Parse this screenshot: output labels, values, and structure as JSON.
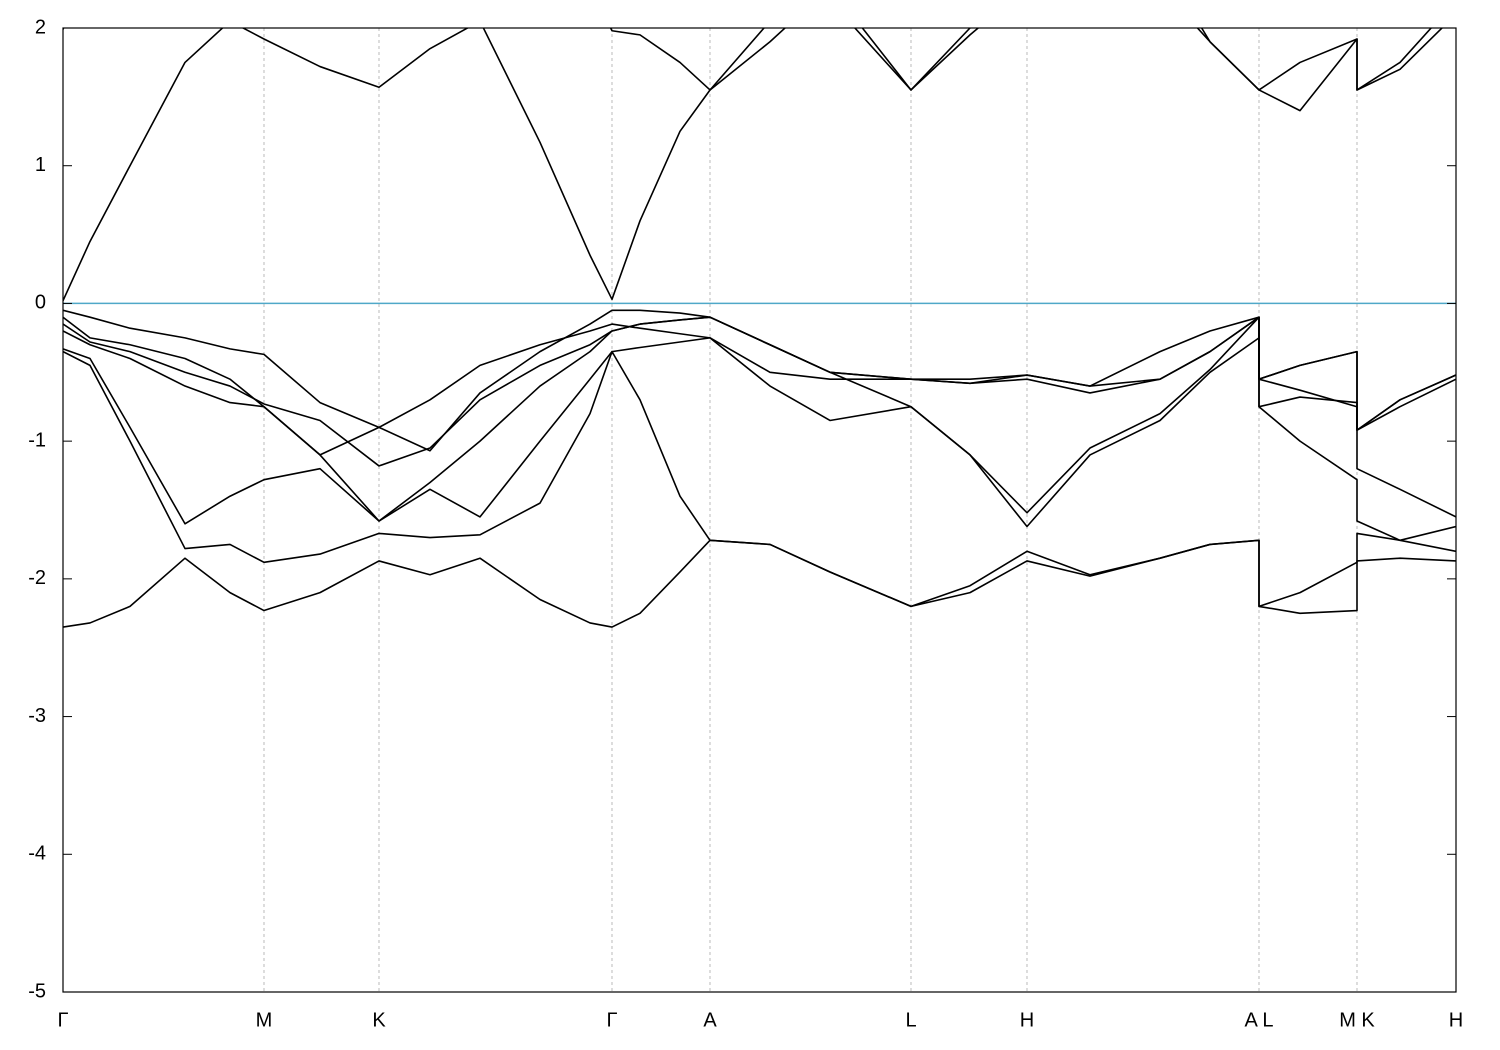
{
  "chart_data": {
    "type": "line",
    "x": [
      0,
      27,
      67,
      122,
      167,
      201,
      257,
      316,
      367,
      417,
      477,
      527,
      549,
      577,
      617,
      647,
      707,
      767,
      848,
      907,
      964,
      1027,
      1097,
      1147,
      1196,
      1196,
      1237,
      1294,
      1294,
      1337,
      1393
    ],
    "xlim": [
      0,
      1393
    ],
    "xticks": [
      {
        "value": 0,
        "label": "Γ"
      },
      {
        "value": 201,
        "label": "M"
      },
      {
        "value": 316,
        "label": "K"
      },
      {
        "value": 549,
        "label": "Γ"
      },
      {
        "value": 647,
        "label": "A"
      },
      {
        "value": 848,
        "label": "L"
      },
      {
        "value": 964,
        "label": "H"
      },
      {
        "value": 1196,
        "label": "A L"
      },
      {
        "value": 1294,
        "label": "M K"
      },
      {
        "value": 1393,
        "label": "H"
      }
    ],
    "ylim": [
      -5,
      2
    ],
    "yticks": [
      -5,
      -4,
      -3,
      -2,
      -1,
      0,
      1,
      2
    ],
    "xgrid": true,
    "reference_line": 0,
    "reference_color": "#4fa8c8",
    "series": [
      {
        "color": "#000000",
        "values": [
          -2.35,
          -2.32,
          -2.2,
          -1.85,
          -2.1,
          -2.23,
          -2.1,
          -1.87,
          -1.97,
          -1.85,
          -2.15,
          -2.32,
          -2.35,
          -2.25,
          -1.95,
          -1.72,
          -1.75,
          -1.95,
          -2.2,
          -2.1,
          -1.87,
          -1.98,
          -1.85,
          -1.75,
          -1.72,
          -2.2,
          -2.25,
          -2.23,
          -1.87,
          -1.85,
          -1.87
        ]
      },
      {
        "color": "#000000",
        "values": [
          -0.35,
          -0.45,
          -1.0,
          -1.78,
          -1.75,
          -1.88,
          -1.82,
          -1.67,
          -1.7,
          -1.68,
          -1.45,
          -0.8,
          -0.35,
          -0.7,
          -1.4,
          -1.72,
          -1.75,
          -1.95,
          -2.2,
          -2.05,
          -1.8,
          -1.97,
          -1.85,
          -1.75,
          -1.72,
          -2.2,
          -2.1,
          -1.88,
          -1.67,
          -1.72,
          -1.8
        ]
      },
      {
        "color": "#000000",
        "values": [
          -0.33,
          -0.4,
          -0.9,
          -1.6,
          -1.4,
          -1.28,
          -1.2,
          -1.58,
          -1.35,
          -1.55,
          -1.0,
          -0.55,
          -0.35,
          -0.32,
          -0.28,
          -0.25,
          -0.6,
          -0.85,
          -0.75,
          -1.1,
          -1.62,
          -1.1,
          -0.85,
          -0.5,
          -0.25,
          -0.75,
          -1.0,
          -1.28,
          -1.58,
          -1.72,
          -1.62
        ]
      },
      {
        "color": "#000000",
        "values": [
          -0.2,
          -0.3,
          -0.4,
          -0.6,
          -0.72,
          -0.75,
          -1.1,
          -1.58,
          -1.3,
          -1.0,
          -0.6,
          -0.35,
          -0.2,
          -0.15,
          -0.12,
          -0.1,
          -0.3,
          -0.5,
          -0.75,
          -1.1,
          -1.52,
          -1.05,
          -0.8,
          -0.48,
          -0.1,
          -0.75,
          -0.68,
          -0.72,
          -1.2,
          -1.35,
          -1.55
        ]
      },
      {
        "color": "#000000",
        "values": [
          -0.15,
          -0.28,
          -0.35,
          -0.5,
          -0.6,
          -0.73,
          -0.85,
          -1.18,
          -1.05,
          -0.7,
          -0.45,
          -0.3,
          -0.2,
          -0.15,
          -0.12,
          -0.1,
          -0.3,
          -0.5,
          -0.55,
          -0.58,
          -0.55,
          -0.65,
          -0.55,
          -0.35,
          -0.1,
          -0.55,
          -0.63,
          -0.75,
          -0.92,
          -0.75,
          -0.55
        ]
      },
      {
        "color": "#000000",
        "values": [
          -0.1,
          -0.25,
          -0.3,
          -0.4,
          -0.55,
          -0.75,
          -1.1,
          -0.9,
          -0.7,
          -0.45,
          -0.3,
          -0.2,
          -0.15,
          -0.18,
          -0.22,
          -0.25,
          -0.5,
          -0.55,
          -0.55,
          -0.55,
          -0.52,
          -0.6,
          -0.55,
          -0.35,
          -0.1,
          -0.55,
          -0.45,
          -0.35,
          -0.92,
          -0.7,
          -0.52
        ]
      },
      {
        "color": "#000000",
        "values": [
          -0.05,
          -0.1,
          -0.18,
          -0.25,
          -0.33,
          -0.37,
          -0.72,
          -0.9,
          -1.07,
          -0.65,
          -0.35,
          -0.15,
          -0.05,
          -0.05,
          -0.07,
          -0.1,
          -0.3,
          -0.5,
          -0.55,
          -0.58,
          -0.52,
          -0.6,
          -0.35,
          -0.2,
          -0.1,
          -0.55,
          -0.45,
          -0.35,
          -0.92,
          -0.7,
          -0.52
        ]
      },
      {
        "color": "#000000",
        "values": [
          0.02,
          0.45,
          1.0,
          1.75,
          2.05,
          1.92,
          1.72,
          1.57,
          1.85,
          2.05,
          1.17,
          0.35,
          0.03,
          0.6,
          1.25,
          1.55,
          2.05,
          2.2,
          1.55,
          1.95,
          2.3,
          2.5,
          2.3,
          1.9,
          1.55,
          1.55,
          1.4,
          1.92,
          1.55,
          1.7,
          2.1
        ]
      },
      {
        "color": "#000000",
        "values": [
          1.99,
          2.5,
          2.5,
          2.5,
          2.5,
          2.5,
          2.5,
          2.5,
          2.5,
          2.5,
          2.5,
          2.3,
          1.98,
          1.95,
          1.75,
          1.55,
          1.9,
          2.3,
          1.55,
          2.0,
          2.5,
          2.5,
          2.5,
          1.9,
          1.55,
          1.55,
          1.75,
          1.92,
          1.55,
          1.75,
          2.2
        ]
      }
    ]
  }
}
